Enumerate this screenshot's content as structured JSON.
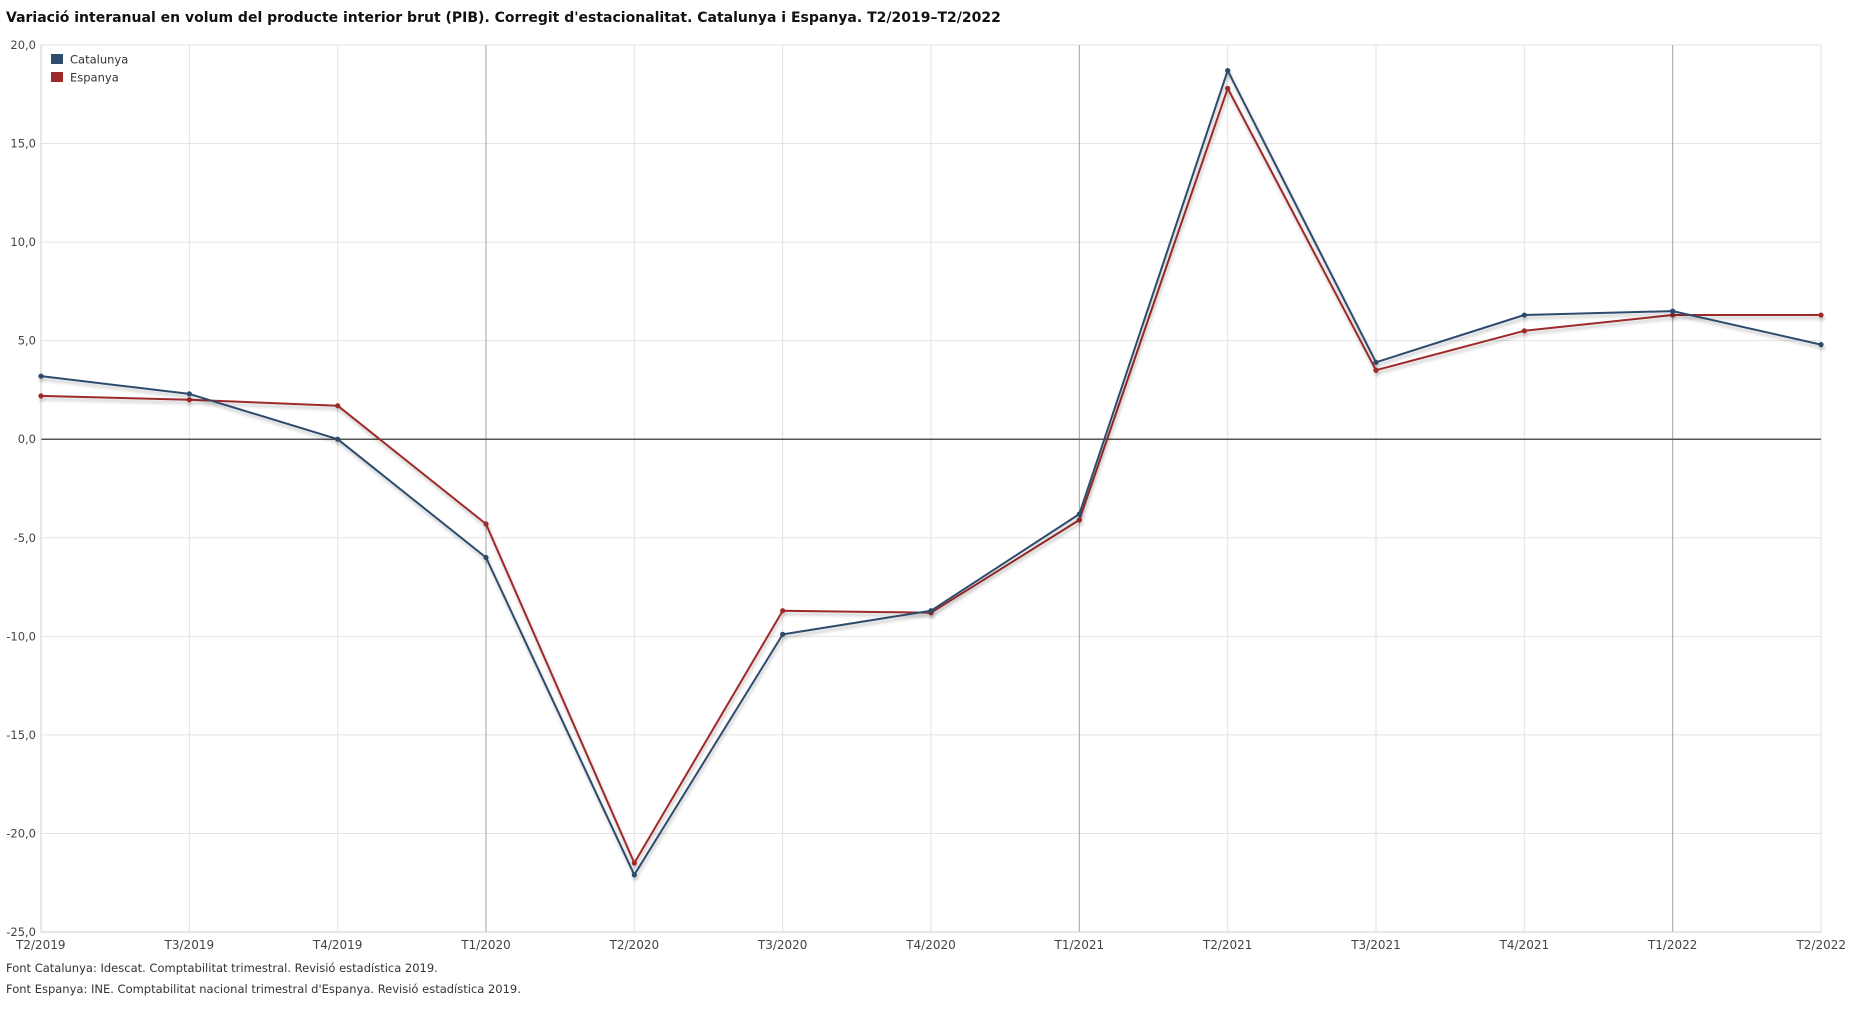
{
  "chart_data": {
    "type": "line",
    "title": "Variació interanual en volum del producte interior brut (PIB). Corregit d'estacionalitat. Catalunya i Espanya. T2/2019–T2/2022",
    "xlabel": "",
    "ylabel": "",
    "categories": [
      "T2/2019",
      "T3/2019",
      "T4/2019",
      "T1/2020",
      "T2/2020",
      "T3/2020",
      "T4/2020",
      "T1/2021",
      "T2/2021",
      "T3/2021",
      "T4/2021",
      "T1/2022",
      "T2/2022"
    ],
    "series": [
      {
        "name": "Catalunya",
        "color": "#2e4c6e",
        "values": [
          3.2,
          2.3,
          0.0,
          -6.0,
          -22.1,
          -9.9,
          -8.7,
          -3.8,
          18.7,
          3.9,
          6.3,
          6.5,
          4.8
        ]
      },
      {
        "name": "Espanya",
        "color": "#9e2a2b",
        "values": [
          2.2,
          2.0,
          1.7,
          -4.3,
          -21.5,
          -8.7,
          -8.8,
          -4.1,
          17.8,
          3.5,
          5.5,
          6.3,
          6.3
        ]
      }
    ],
    "ylim": [
      -25,
      20
    ],
    "yticks": [
      20,
      15,
      10,
      5,
      0,
      -5,
      -10,
      -15,
      -20,
      -25
    ],
    "ytick_labels": [
      "20,0",
      "15,0",
      "10,0",
      "5,0",
      "0,0",
      "-5,0",
      "-10,0",
      "-15,0",
      "-20,0",
      "-25,0"
    ],
    "year_boundaries": [
      "T1/2020",
      "T1/2021",
      "T1/2022"
    ],
    "grid": true,
    "legend": "top-left"
  },
  "sources": [
    "Font Catalunya: Idescat. Comptabilitat trimestral. Revisió estadística 2019.",
    "Font Espanya: INE. Comptabilitat nacional trimestral d'Espanya. Revisió estadística 2019."
  ]
}
